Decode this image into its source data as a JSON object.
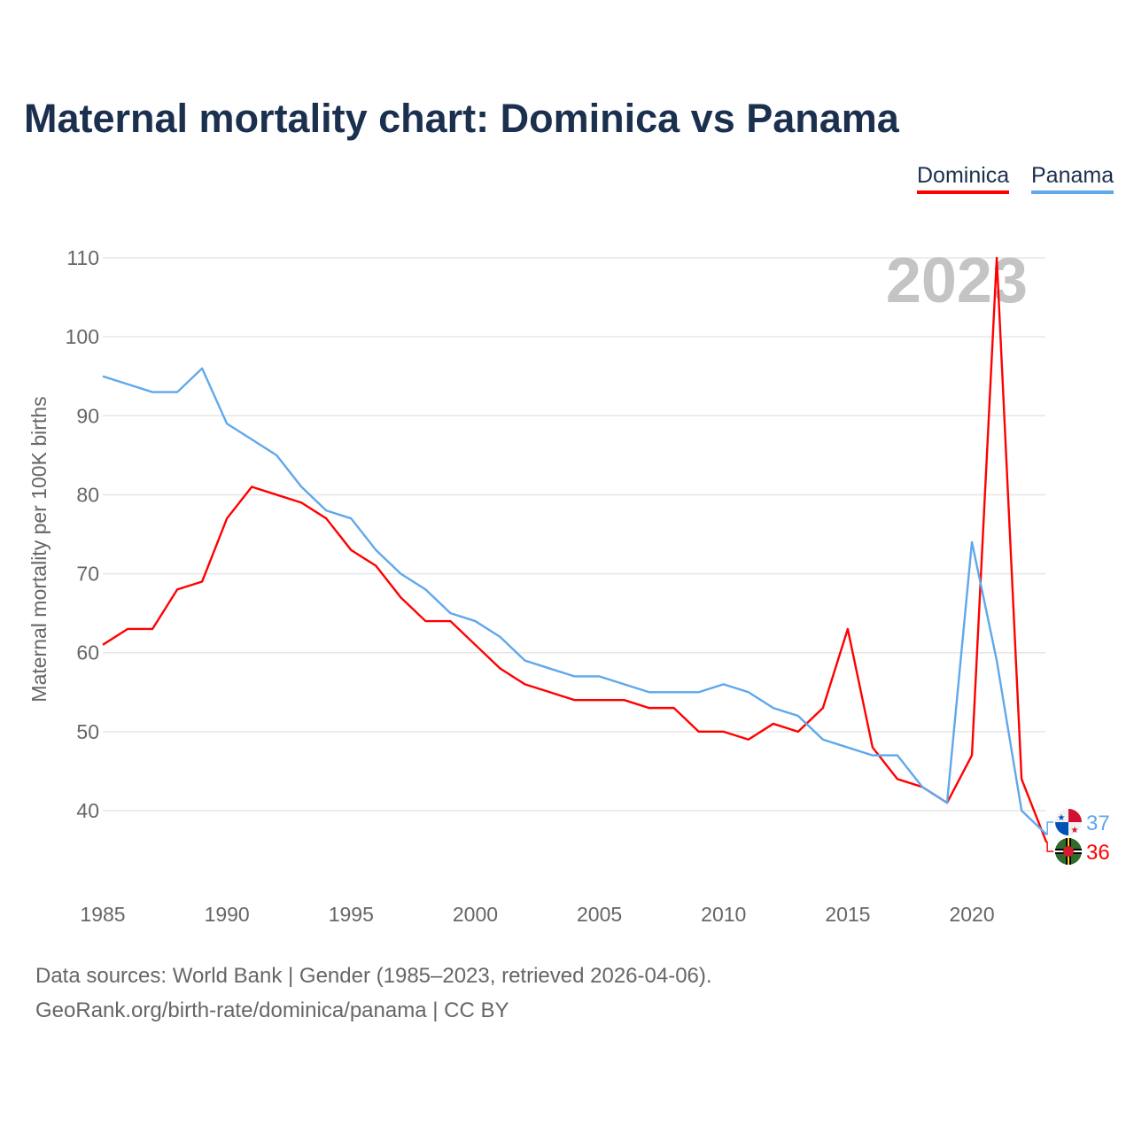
{
  "title": "Maternal mortality chart: Dominica vs Panama",
  "footer": {
    "line1": "Data sources: World Bank | Gender (1985–2023, retrieved 2026-04-06).",
    "line2": "GeoRank.org/birth-rate/dominica/panama | CC BY"
  },
  "chart_data": {
    "type": "line",
    "title": "Maternal mortality chart: Dominica vs Panama",
    "ylabel": "Maternal mortality per 100K births",
    "xlabel": "",
    "year_label": "2023",
    "x": [
      1985,
      1986,
      1987,
      1988,
      1989,
      1990,
      1991,
      1992,
      1993,
      1994,
      1995,
      1996,
      1997,
      1998,
      1999,
      2000,
      2001,
      2002,
      2003,
      2004,
      2005,
      2006,
      2007,
      2008,
      2009,
      2010,
      2011,
      2012,
      2013,
      2014,
      2015,
      2016,
      2017,
      2018,
      2019,
      2020,
      2021,
      2022,
      2023
    ],
    "xticks": [
      "1985",
      "1990",
      "1995",
      "2000",
      "2005",
      "2010",
      "2015",
      "2020"
    ],
    "yticks": [
      "40",
      "50",
      "60",
      "70",
      "80",
      "90",
      "100",
      "110"
    ],
    "ylim": [
      30,
      110
    ],
    "grid": true,
    "legend": "top-right",
    "series": [
      {
        "name": "Dominica",
        "color": "#ff0000",
        "end_label": "36",
        "values": [
          61,
          63,
          63,
          68,
          69,
          77,
          81,
          80,
          79,
          77,
          73,
          71,
          67,
          64,
          64,
          61,
          58,
          56,
          55,
          54,
          54,
          54,
          53,
          53,
          50,
          50,
          49,
          51,
          50,
          53,
          63,
          48,
          44,
          43,
          41,
          47,
          110,
          44,
          36
        ]
      },
      {
        "name": "Panama",
        "color": "#5fa8eb",
        "end_label": "37",
        "values": [
          95,
          94,
          93,
          93,
          96,
          89,
          87,
          85,
          81,
          78,
          77,
          73,
          70,
          68,
          65,
          64,
          62,
          59,
          58,
          57,
          57,
          56,
          55,
          55,
          55,
          56,
          55,
          53,
          52,
          49,
          48,
          47,
          47,
          43,
          41,
          74,
          59,
          40,
          37
        ]
      }
    ]
  }
}
